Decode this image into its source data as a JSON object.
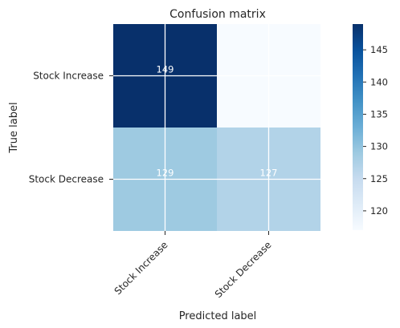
{
  "chart_data": {
    "type": "heatmap",
    "title": "Confusion matrix",
    "xlabel": "Predicted label",
    "ylabel": "True label",
    "x_categories": [
      "Stock Increase",
      "Stock Decrease"
    ],
    "y_categories": [
      "Stock Increase",
      "Stock Decrease"
    ],
    "values": [
      [
        149,
        117
      ],
      [
        129,
        127
      ]
    ],
    "cell_labels": [
      [
        "149",
        ""
      ],
      [
        "129",
        "127"
      ]
    ],
    "colormap": "Blues",
    "colorbar": {
      "range": [
        117,
        149
      ],
      "ticks": [
        120,
        125,
        130,
        135,
        140,
        145
      ],
      "tick_labels": [
        "120",
        "125",
        "130",
        "135",
        "140",
        "145"
      ]
    },
    "grid": true
  }
}
